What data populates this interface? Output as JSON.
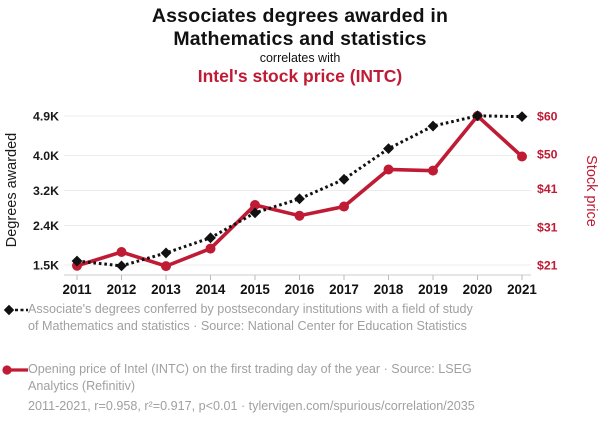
{
  "header": {
    "title": "Associates degrees awarded in\nMathematics and statistics",
    "connector": "correlates with",
    "subtitle": "Intel's stock price (INTC)"
  },
  "chart_data": {
    "type": "line",
    "x_labels": [
      "2011",
      "2012",
      "2013",
      "2014",
      "2015",
      "2016",
      "2017",
      "2018",
      "2019",
      "2020",
      "2021"
    ],
    "series": [
      {
        "name": "Associate's degrees awarded in Mathematics and statistics",
        "axis": "left",
        "color": "#111111",
        "marker": "diamond",
        "line_style": "dotted",
        "values": [
          1590,
          1480,
          1775,
          2120,
          2690,
          3010,
          3455,
          4155,
          4670,
          4905,
          4885
        ]
      },
      {
        "name": "Intel stock opening price (INTC)",
        "axis": "right",
        "color": "#bf1b34",
        "marker": "circle",
        "line_style": "solid",
        "values": [
          20.8,
          24.4,
          20.7,
          25.3,
          36.7,
          33.9,
          36.3,
          46.0,
          45.7,
          60.0,
          49.4
        ]
      }
    ],
    "left_axis": {
      "label": "Degrees awarded",
      "range": [
        1500,
        4900
      ],
      "ticks": [
        {
          "value": 1500,
          "label": "1.5K"
        },
        {
          "value": 2400,
          "label": "2.4K"
        },
        {
          "value": 3200,
          "label": "3.2K"
        },
        {
          "value": 4000,
          "label": "4.0K"
        },
        {
          "value": 4900,
          "label": "4.9K"
        }
      ]
    },
    "right_axis": {
      "label": "Stock price",
      "range": [
        21,
        60
      ],
      "ticks": [
        {
          "value": 21,
          "label": "$21"
        },
        {
          "value": 31,
          "label": "$31"
        },
        {
          "value": 41,
          "label": "$41"
        },
        {
          "value": 50,
          "label": "$50"
        },
        {
          "value": 60,
          "label": "$60"
        }
      ]
    },
    "grid": true,
    "legend_position": "bottom"
  },
  "legend": {
    "series1": "Associate's degrees conferred by postsecondary institutions with a field of study of Mathematics and statistics · Source: National Center for Education Statistics",
    "series2": "Opening price of Intel (INTC) on the first trading day of the year · Source: LSEG Analytics (Refinitiv)"
  },
  "footer": {
    "stats": "2011-2021, r=0.958, r²=0.917, p<0.01 · tylervigen.com/spurious/correlation/2035"
  },
  "colors": {
    "accent_red": "#bf1b34",
    "series_black": "#111111",
    "legend_gray": "#a0a0a0",
    "gridline": "#ececec"
  }
}
